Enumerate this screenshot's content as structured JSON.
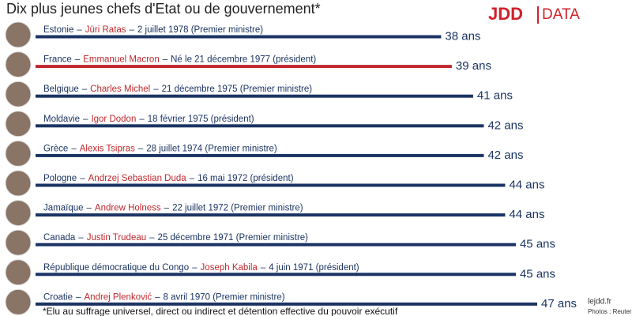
{
  "header": {
    "title": "Dix plus jeunes chefs d'Etat ou de gouvernement*",
    "logo": "JDD",
    "logo_sub": "DATA"
  },
  "footer": {
    "note": "*Elu au suffrage universel, direct ou indirect et détention effective du pouvoir exécutif",
    "site": "lejdd.fr",
    "credit": "Photos : Reuters"
  },
  "chart_data": {
    "type": "bar",
    "separator": "–",
    "categories": [
      "Estonie",
      "France",
      "Belgique",
      "Moldavie",
      "Grèce",
      "Pologne",
      "Jamaïque",
      "Canada",
      "République démocratique du Congo",
      "Croatie"
    ],
    "leaders": [
      "Jüri Ratas",
      "Emmanuel Macron",
      "Charles Michel",
      "Igor Dodon",
      "Alexis Tsipras",
      "Andrzej Sebastian Duda",
      "Andrew Holness",
      "Justin Trudeau",
      "Joseph Kabila",
      "Andrej Plenković"
    ],
    "details": [
      "2 juillet 1978 (Premier ministre)",
      "Né le 21 décembre 1977 (président)",
      "21 décembre 1975 (Premier ministre)",
      "18 février 1975 (président)",
      "28 juillet 1974 (Premier ministre)",
      "16 mai 1972 (président)",
      "22 juillet 1972 (Premier ministre)",
      "25 décembre 1971 (Premier ministre)",
      "4 juin 1971 (président)",
      "8 avril 1970 (Premier ministre)"
    ],
    "values": [
      38,
      39,
      41,
      42,
      42,
      44,
      44,
      45,
      45,
      47
    ],
    "value_labels": [
      "38 ans",
      "39 ans",
      "41 ans",
      "42 ans",
      "42 ans",
      "44 ans",
      "44 ans",
      "45 ans",
      "45 ans",
      "47 ans"
    ],
    "colors": [
      "#1b3463",
      "#c0282d",
      "#1b3463",
      "#1b3463",
      "#1b3463",
      "#1b3463",
      "#1b3463",
      "#1b3463",
      "#1b3463",
      "#1b3463"
    ]
  }
}
